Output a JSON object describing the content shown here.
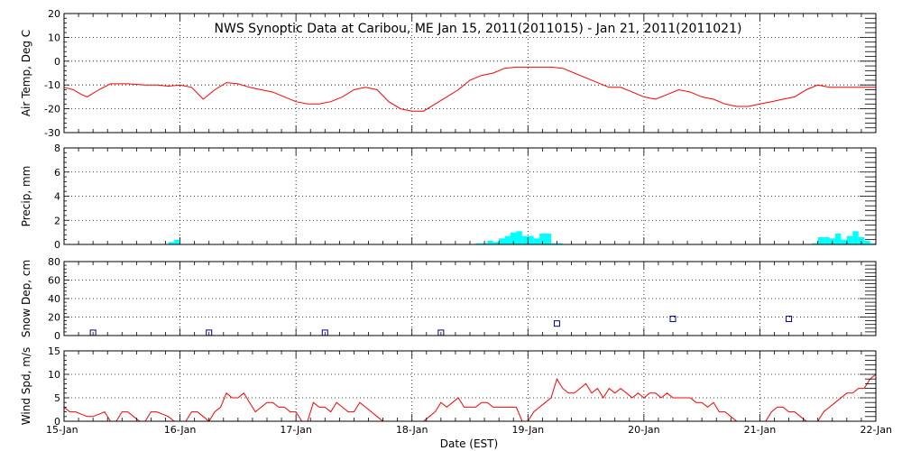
{
  "title": "NWS Synoptic Data at Caribou, ME   Jan 15, 2011(2011015) - Jan 21, 2011(2011021)",
  "xlabel": "Date (EST)",
  "day_labels": [
    "15-Jan",
    "16-Jan",
    "17-Jan",
    "18-Jan",
    "19-Jan",
    "20-Jan",
    "21-Jan",
    "22-Jan"
  ],
  "colors": {
    "line": "#ff0000",
    "precip": "#00ffff",
    "snow": "#00008b",
    "axis": "#000000"
  },
  "chart_data": [
    {
      "type": "line",
      "name": "air-temp",
      "ylabel": "Air Temp, Deg C",
      "ylim": [
        -30,
        20
      ],
      "yticks": [
        -30,
        -20,
        -10,
        0,
        10,
        20
      ],
      "x_days": [
        0,
        0.08,
        0.15,
        0.2,
        0.3,
        0.4,
        0.55,
        0.7,
        0.8,
        0.9,
        1.0,
        1.1,
        1.2,
        1.3,
        1.4,
        1.5,
        1.6,
        1.7,
        1.8,
        1.9,
        2.0,
        2.1,
        2.2,
        2.3,
        2.4,
        2.5,
        2.6,
        2.7,
        2.8,
        2.9,
        3.0,
        3.1,
        3.2,
        3.3,
        3.4,
        3.5,
        3.6,
        3.7,
        3.8,
        3.9,
        4.0,
        4.1,
        4.2,
        4.3,
        4.4,
        4.5,
        4.6,
        4.7,
        4.8,
        4.9,
        5.0,
        5.1,
        5.2,
        5.3,
        5.4,
        5.5,
        5.6,
        5.7,
        5.8,
        5.9,
        6.0,
        6.1,
        6.2,
        6.3,
        6.4,
        6.5,
        6.6,
        6.7,
        6.8,
        6.9,
        7.0
      ],
      "values": [
        -11,
        -12,
        -14,
        -15,
        -12,
        -9.5,
        -9.5,
        -10,
        -10,
        -10.5,
        -10,
        -11,
        -16,
        -12,
        -9,
        -9.5,
        -11,
        -12,
        -13,
        -15,
        -17,
        -18,
        -18,
        -17,
        -15,
        -12,
        -11,
        -12,
        -17,
        -20,
        -21,
        -21,
        -18,
        -15,
        -12,
        -8,
        -6,
        -5,
        -3,
        -2.5,
        -2.5,
        -2.5,
        -2.5,
        -3,
        -5,
        -7,
        -9,
        -11,
        -11,
        -13,
        -15,
        -16,
        -14,
        -12,
        -13,
        -15,
        -16,
        -18,
        -19,
        -19,
        -18,
        -17,
        -16,
        -15,
        -12,
        -10,
        -11,
        -11,
        -11,
        -11,
        -11
      ]
    },
    {
      "type": "bar",
      "name": "precip",
      "ylabel": "Precip, mm",
      "ylim": [
        0,
        8
      ],
      "yticks": [
        0,
        2,
        4,
        6,
        8
      ],
      "x_days": [
        0.9,
        0.95,
        3.55,
        3.6,
        3.65,
        3.7,
        3.75,
        3.8,
        3.85,
        3.9,
        3.95,
        4.0,
        4.05,
        4.1,
        4.15,
        4.2,
        4.25,
        4.3,
        6.45,
        6.5,
        6.55,
        6.6,
        6.65,
        6.7,
        6.75,
        6.8,
        6.85,
        6.9,
        6.95
      ],
      "values": [
        0.2,
        0.4,
        0.1,
        0.1,
        0.3,
        0.2,
        0.5,
        0.7,
        1.0,
        1.1,
        0.7,
        0.7,
        0.5,
        0.9,
        0.9,
        0.1,
        0.1,
        0.0,
        0.1,
        0.6,
        0.6,
        0.5,
        0.9,
        0.4,
        0.7,
        1.1,
        0.6,
        0.3,
        0.1
      ]
    },
    {
      "type": "scatter",
      "name": "snow-depth",
      "ylabel": "Snow Dep, cm",
      "ylim": [
        0,
        80
      ],
      "yticks": [
        0,
        20,
        40,
        60,
        80
      ],
      "x_days": [
        0.25,
        1.25,
        2.25,
        3.25,
        4.25,
        5.25,
        6.25
      ],
      "values": [
        3,
        3,
        3,
        3,
        13,
        18,
        18
      ]
    },
    {
      "type": "line",
      "name": "wind-speed",
      "ylabel": "Wind Spd, m/s",
      "ylim": [
        0,
        15
      ],
      "yticks": [
        0,
        5,
        10,
        15
      ],
      "x_days": [
        0,
        0.05,
        0.1,
        0.15,
        0.2,
        0.25,
        0.3,
        0.35,
        0.4,
        0.45,
        0.5,
        0.55,
        0.6,
        0.65,
        0.7,
        0.75,
        0.8,
        0.85,
        0.9,
        0.95,
        1.0,
        1.05,
        1.1,
        1.15,
        1.2,
        1.25,
        1.3,
        1.35,
        1.4,
        1.45,
        1.5,
        1.55,
        1.6,
        1.65,
        1.7,
        1.75,
        1.8,
        1.85,
        1.9,
        1.95,
        2.0,
        2.05,
        2.1,
        2.15,
        2.2,
        2.25,
        2.3,
        2.35,
        2.4,
        2.45,
        2.5,
        2.55,
        2.6,
        2.65,
        2.7,
        2.75,
        2.8,
        2.85,
        2.9,
        2.95,
        3.0,
        3.05,
        3.1,
        3.15,
        3.2,
        3.25,
        3.3,
        3.35,
        3.4,
        3.45,
        3.5,
        3.55,
        3.6,
        3.65,
        3.7,
        3.75,
        3.8,
        3.85,
        3.9,
        3.95,
        4.0,
        4.05,
        4.1,
        4.15,
        4.2,
        4.25,
        4.3,
        4.35,
        4.4,
        4.45,
        4.5,
        4.55,
        4.6,
        4.65,
        4.7,
        4.75,
        4.8,
        4.85,
        4.9,
        4.95,
        5.0,
        5.05,
        5.1,
        5.15,
        5.2,
        5.25,
        5.3,
        5.35,
        5.4,
        5.45,
        5.5,
        5.55,
        5.6,
        5.65,
        5.7,
        5.75,
        5.8,
        5.85,
        5.9,
        5.95,
        6.0,
        6.05,
        6.1,
        6.15,
        6.2,
        6.25,
        6.3,
        6.35,
        6.4,
        6.45,
        6.5,
        6.55,
        6.6,
        6.65,
        6.7,
        6.75,
        6.8,
        6.85,
        6.9,
        6.95,
        7.0
      ],
      "values": [
        3,
        2,
        2,
        1.5,
        1,
        1,
        1.5,
        2,
        0,
        0,
        2,
        2,
        1,
        0,
        0,
        2,
        2,
        1.5,
        1,
        0,
        0,
        0,
        2,
        2,
        1,
        0,
        2,
        3,
        6,
        5,
        5,
        6,
        4,
        2,
        3,
        4,
        4,
        3,
        3,
        2,
        2,
        0,
        0,
        4,
        3,
        3,
        2,
        4,
        3,
        2,
        2,
        4,
        3,
        2,
        1,
        0,
        0,
        0,
        0,
        0,
        0,
        0,
        0,
        1,
        2,
        4,
        3,
        4,
        5,
        3,
        3,
        3,
        4,
        4,
        3,
        3,
        3,
        3,
        3,
        0,
        0,
        2,
        3,
        4,
        5,
        9,
        7,
        6,
        6,
        7,
        8,
        6,
        7,
        5,
        7,
        6,
        7,
        6,
        5,
        6,
        5,
        6,
        6,
        5,
        6,
        5,
        5,
        5,
        5,
        4,
        4,
        3,
        4,
        2,
        2,
        1,
        0,
        0,
        0,
        0,
        0,
        0,
        2,
        3,
        3,
        2,
        2,
        1,
        0,
        0,
        0,
        2,
        3,
        4,
        5,
        6,
        6,
        7,
        7,
        9,
        10
      ]
    }
  ]
}
